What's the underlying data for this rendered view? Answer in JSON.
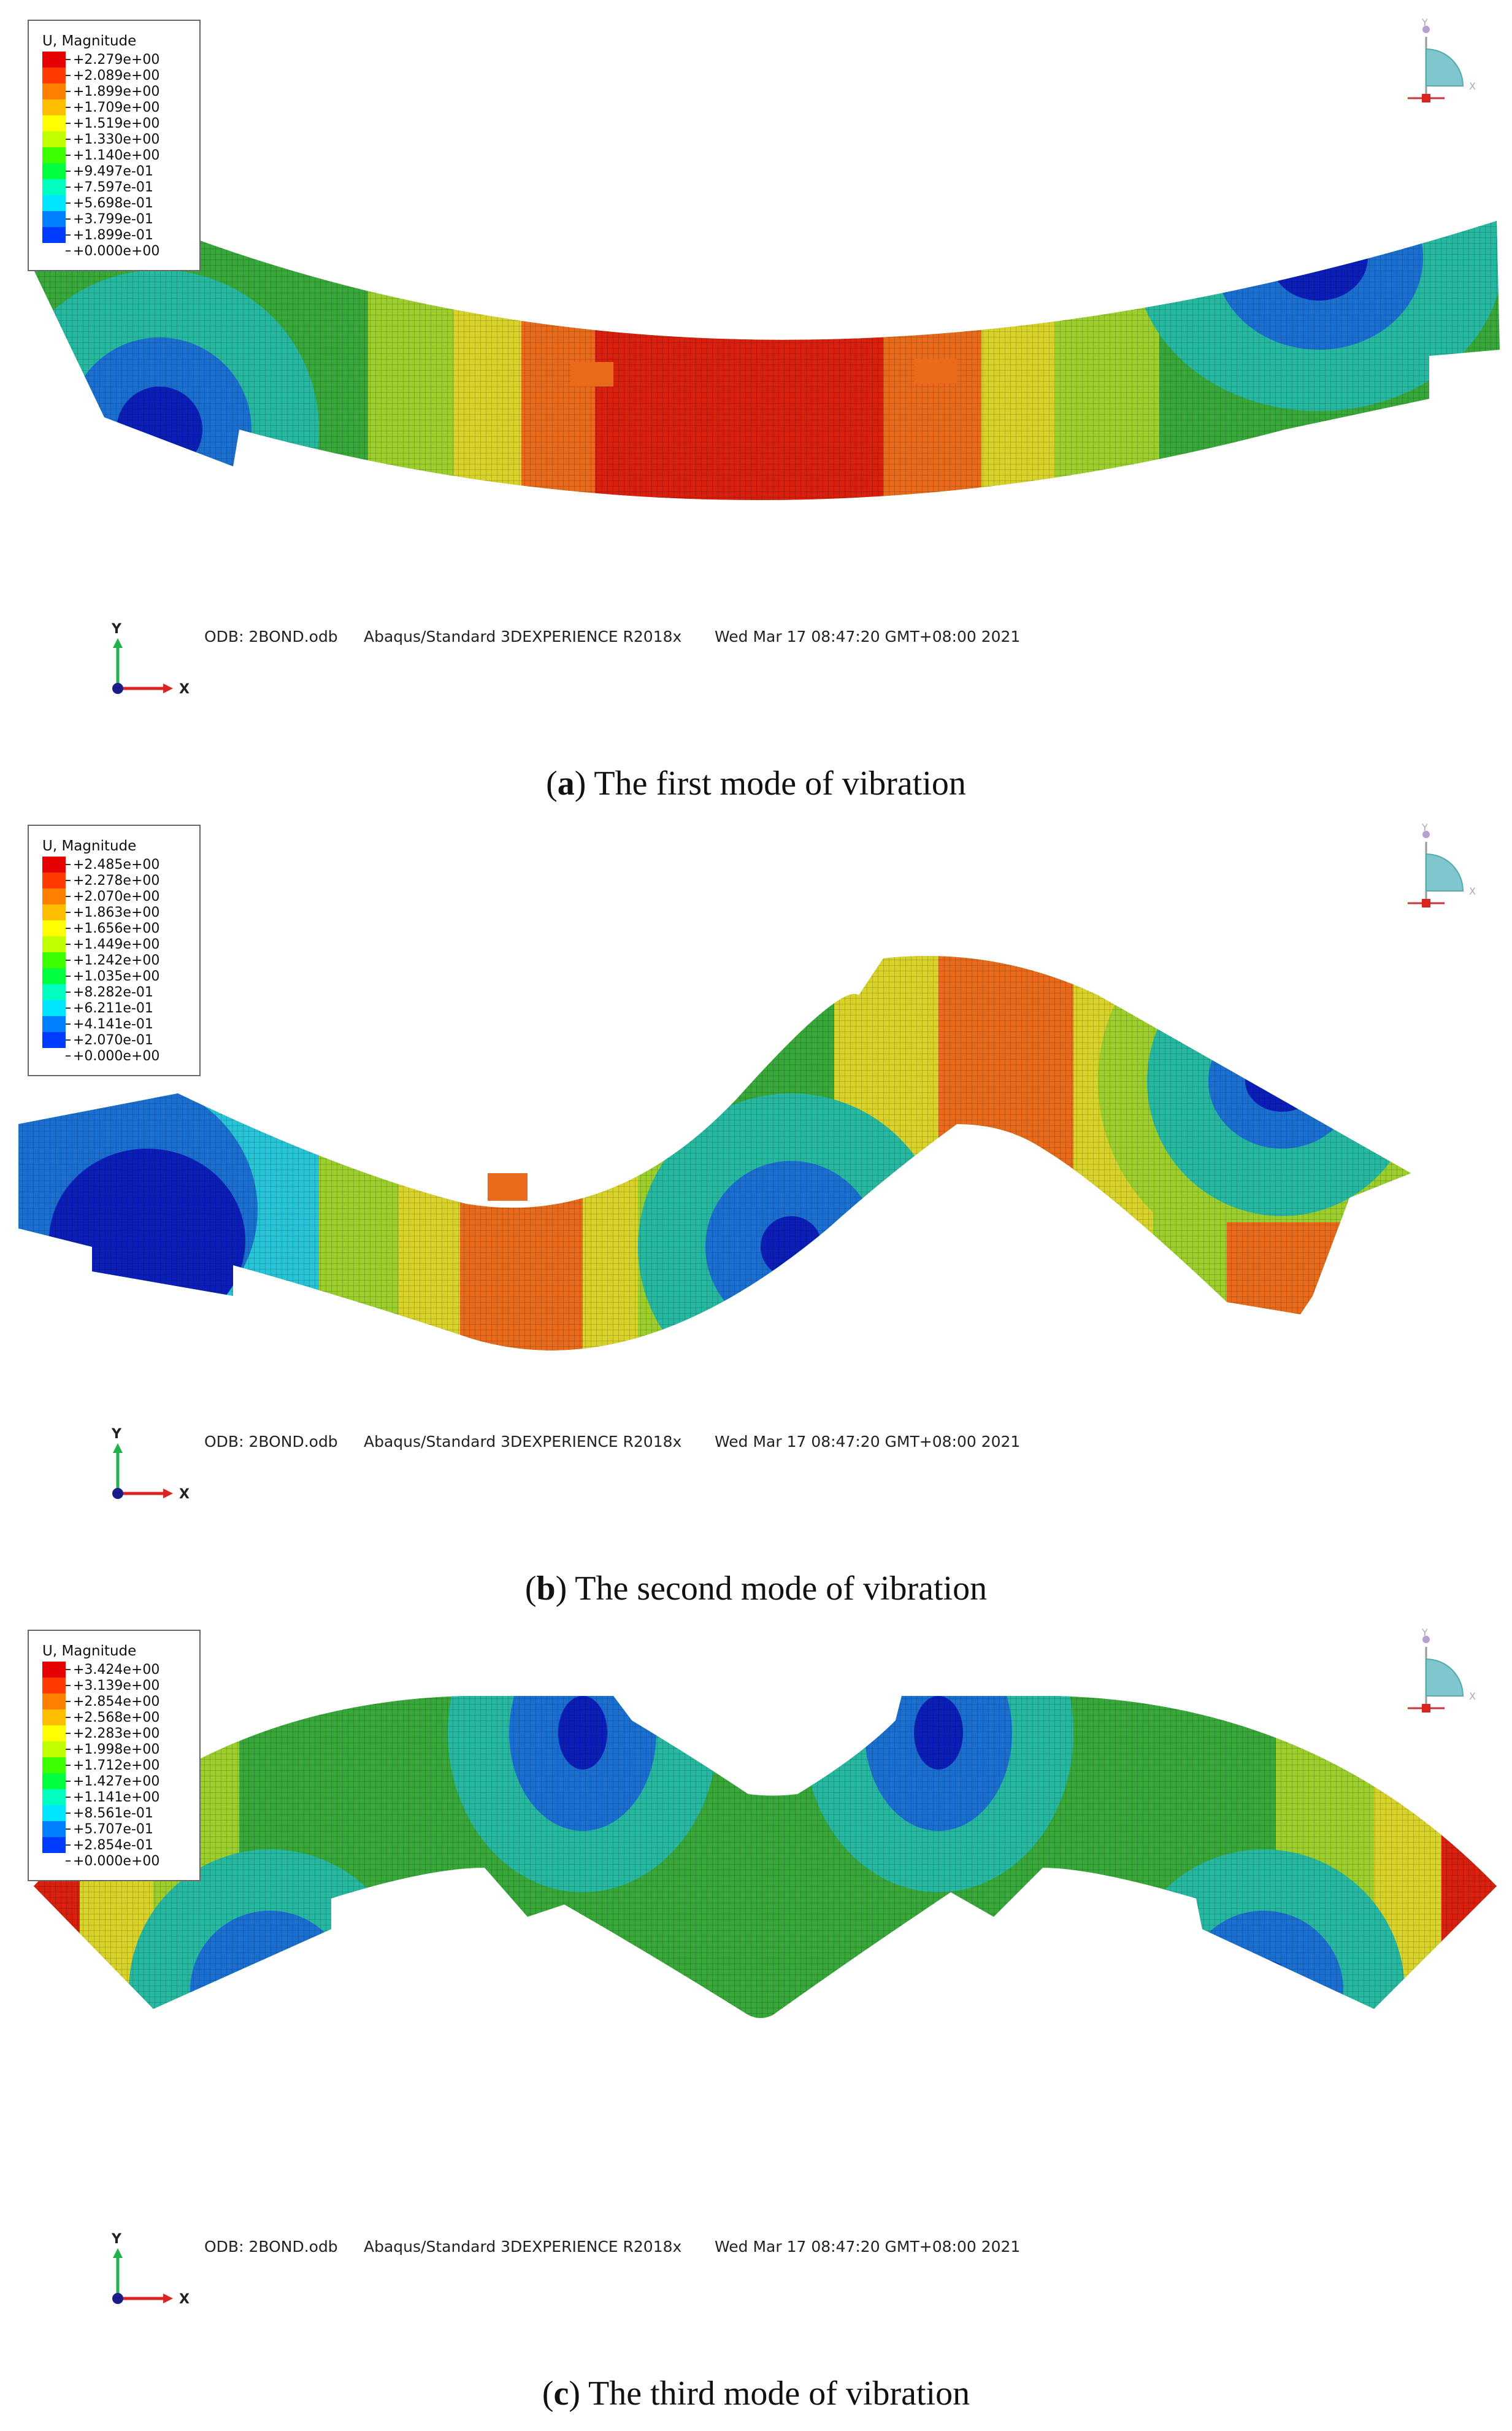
{
  "panels": [
    {
      "legend": {
        "title": "U, Magnitude",
        "labels": [
          "+2.279e+00",
          "+2.089e+00",
          "+1.899e+00",
          "+1.709e+00",
          "+1.519e+00",
          "+1.330e+00",
          "+1.140e+00",
          "+9.497e-01",
          "+7.597e-01",
          "+5.698e-01",
          "+3.799e-01",
          "+1.899e-01",
          "+0.000e+00"
        ]
      },
      "odb": "ODB: 2BOND.odb",
      "solver": "Abaqus/Standard 3DEXPERIENCE R2018x",
      "timestamp": "Wed Mar 17 08:47:20 GMT+08:00 2021",
      "caption_letter": "a",
      "caption_text": ") The first mode of vibration",
      "caption_open": "("
    },
    {
      "legend": {
        "title": "U, Magnitude",
        "labels": [
          "+2.485e+00",
          "+2.278e+00",
          "+2.070e+00",
          "+1.863e+00",
          "+1.656e+00",
          "+1.449e+00",
          "+1.242e+00",
          "+1.035e+00",
          "+8.282e-01",
          "+6.211e-01",
          "+4.141e-01",
          "+2.070e-01",
          "+0.000e+00"
        ]
      },
      "odb": "ODB: 2BOND.odb",
      "solver": "Abaqus/Standard 3DEXPERIENCE R2018x",
      "timestamp": "Wed Mar 17 08:47:20 GMT+08:00 2021",
      "caption_letter": "b",
      "caption_text": ") The second mode of vibration",
      "caption_open": "("
    },
    {
      "legend": {
        "title": "U, Magnitude",
        "labels": [
          "+3.424e+00",
          "+3.139e+00",
          "+2.854e+00",
          "+2.568e+00",
          "+2.283e+00",
          "+1.998e+00",
          "+1.712e+00",
          "+1.427e+00",
          "+1.141e+00",
          "+8.561e-01",
          "+5.707e-01",
          "+2.854e-01",
          "+0.000e+00"
        ]
      },
      "odb": "ODB: 2BOND.odb",
      "solver": "Abaqus/Standard 3DEXPERIENCE R2018x",
      "timestamp": "Wed Mar 17 08:47:20 GMT+08:00 2021",
      "caption_letter": "c",
      "caption_text": ") The third mode of vibration",
      "caption_open": "("
    }
  ],
  "axis_labels": {
    "x": "X",
    "y": "Y"
  },
  "triad_labels": {
    "x": "X",
    "y": "Y"
  },
  "legend_colors": [
    "#e60000",
    "#ff3b00",
    "#ff8000",
    "#ffbf00",
    "#ffff00",
    "#bfff00",
    "#3cff00",
    "#00ff3c",
    "#00ffbf",
    "#00e5ff",
    "#0080ff",
    "#003cff",
    "#0000e6"
  ],
  "contour_colors": {
    "red": "#d9200f",
    "orange": "#e86a1a",
    "yellow": "#d9d22a",
    "lime": "#9ccf2c",
    "green": "#39a83a",
    "teal": "#27b8a2",
    "cyan": "#26c4d6",
    "blue": "#1b6fd0",
    "navy": "#0b1fb8"
  }
}
